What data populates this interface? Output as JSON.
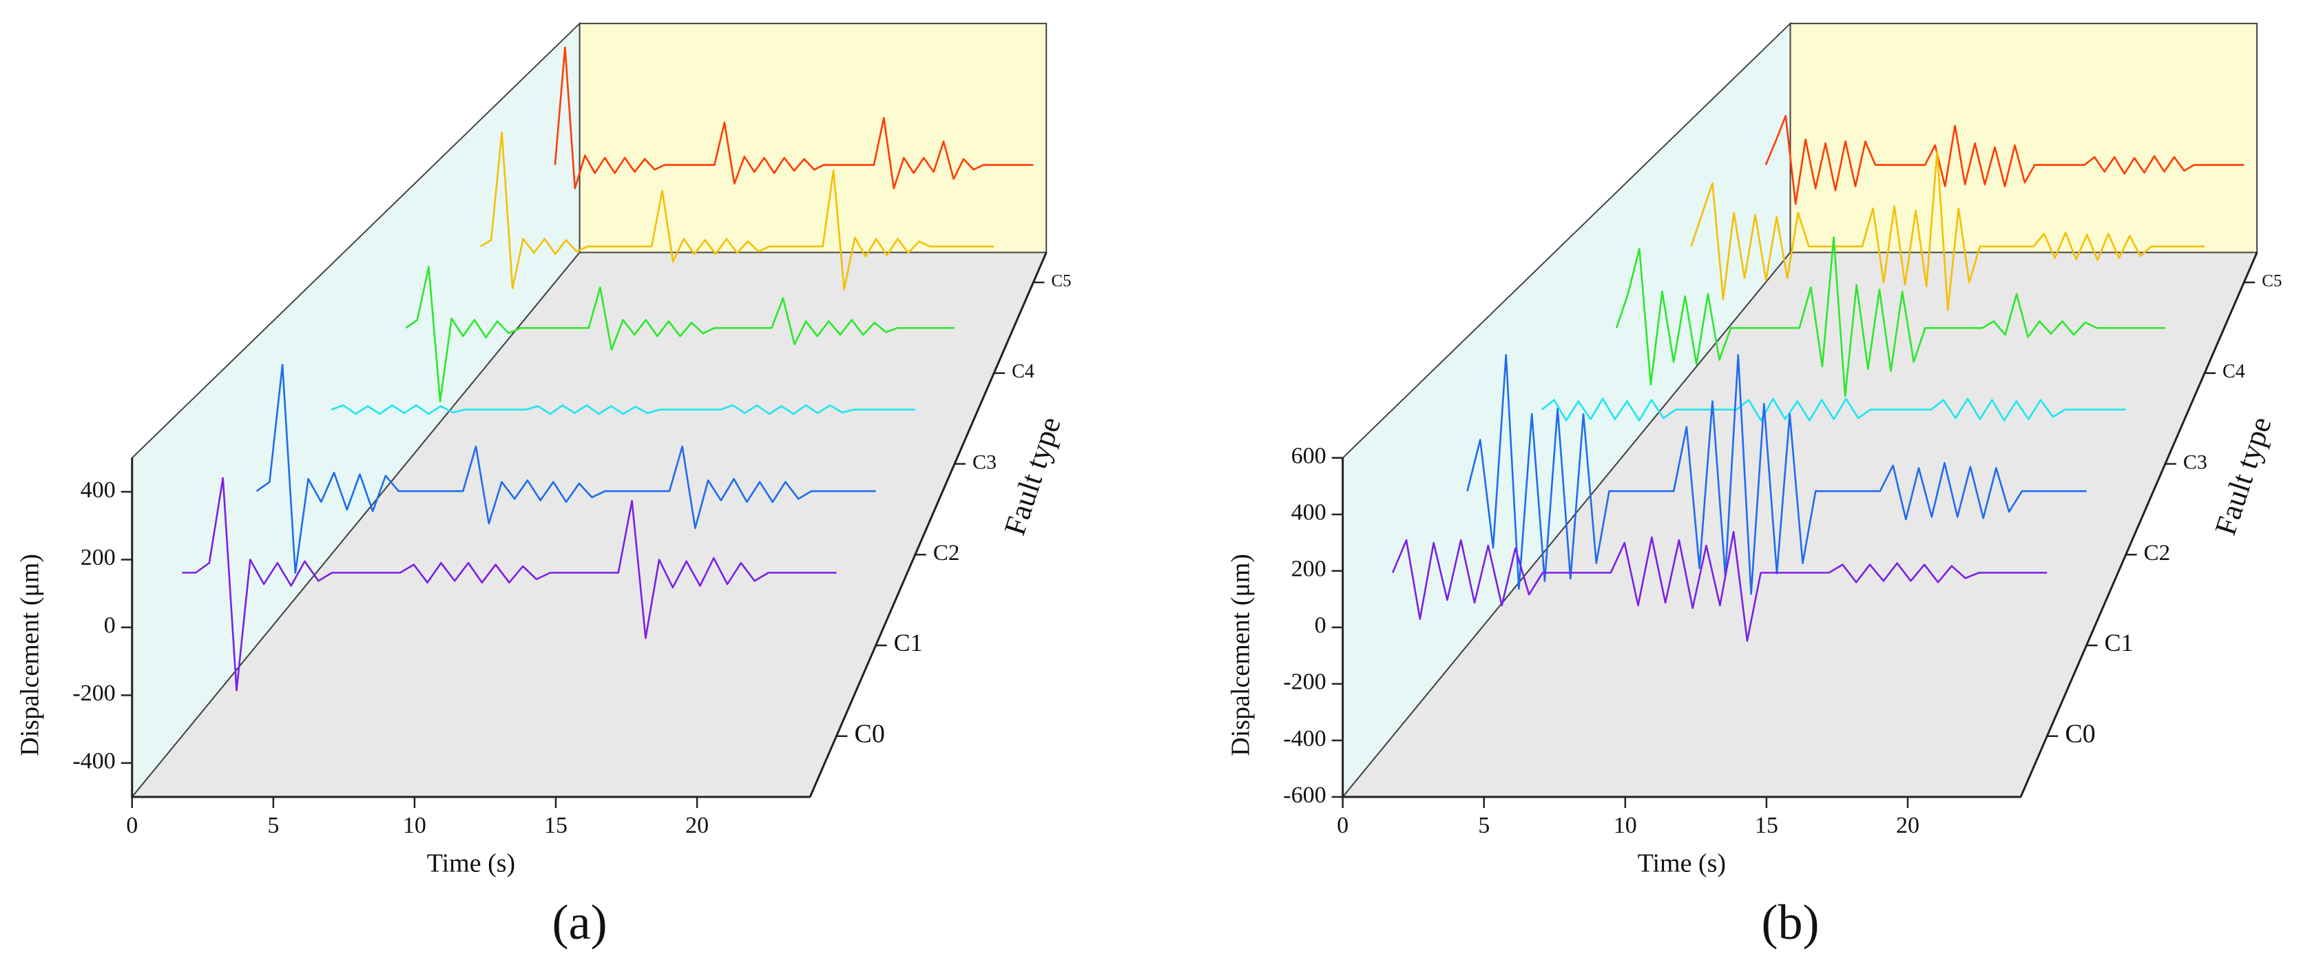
{
  "chart_data": [
    {
      "type": "waterfall",
      "caption": "(a)",
      "x_label": "Time (s)",
      "y_label": "Dispalcement (μm)",
      "z_label": "Fault type",
      "xlim": [
        0,
        24
      ],
      "xticks": [
        0,
        5,
        10,
        15,
        20
      ],
      "ylim": [
        -500,
        500
      ],
      "yticks": [
        -400,
        -200,
        0,
        200,
        400
      ],
      "z_categories": [
        "C0",
        "C1",
        "C2",
        "C3",
        "C4",
        "C5"
      ],
      "x": [
        0,
        0.5,
        1,
        1.5,
        2,
        2.5,
        3,
        3.5,
        4,
        4.5,
        5,
        5.5,
        6,
        6.5,
        7,
        7.5,
        8,
        8.5,
        9,
        9.5,
        10,
        10.5,
        11,
        11.5,
        12,
        12.5,
        13,
        13.5,
        14,
        14.5,
        15,
        15.5,
        16,
        16.5,
        17,
        17.5,
        18,
        18.5,
        19,
        19.5,
        20,
        20.5,
        21,
        21.5,
        22,
        22.5,
        23,
        23.5,
        24
      ],
      "series": [
        {
          "color": "#7b1fe8",
          "values": [
            0,
            0,
            30,
            290,
            -360,
            40,
            -35,
            30,
            -40,
            35,
            -25,
            0,
            0,
            0,
            0,
            0,
            0,
            25,
            -30,
            30,
            -25,
            30,
            -30,
            25,
            -30,
            20,
            -20,
            0,
            0,
            0,
            0,
            0,
            0,
            220,
            -200,
            40,
            -45,
            35,
            -40,
            45,
            -35,
            30,
            -25,
            0,
            0,
            0,
            0,
            0,
            0
          ]
        },
        {
          "color": "#1f6bf0",
          "values": [
            0,
            30,
            410,
            -265,
            40,
            -35,
            60,
            -60,
            55,
            -65,
            50,
            0,
            0,
            0,
            0,
            0,
            0,
            145,
            -105,
            30,
            -25,
            35,
            -30,
            30,
            -35,
            25,
            -20,
            0,
            0,
            0,
            0,
            0,
            0,
            145,
            -120,
            35,
            -30,
            40,
            -35,
            30,
            -35,
            30,
            -25,
            0,
            0,
            0,
            0,
            0,
            0
          ]
        },
        {
          "color": "#1ee6f0",
          "values": [
            0,
            15,
            -15,
            12,
            -15,
            15,
            -12,
            15,
            -15,
            12,
            -10,
            0,
            0,
            0,
            0,
            0,
            0,
            12,
            -15,
            15,
            -12,
            15,
            -15,
            12,
            -15,
            10,
            -12,
            0,
            0,
            0,
            0,
            0,
            0,
            15,
            -12,
            15,
            -15,
            12,
            -15,
            15,
            -12,
            15,
            -10,
            0,
            0,
            0,
            0,
            0,
            0
          ]
        },
        {
          "color": "#2be82b",
          "values": [
            0,
            30,
            225,
            -270,
            35,
            -30,
            30,
            -35,
            25,
            -20,
            0,
            0,
            0,
            0,
            0,
            0,
            0,
            150,
            -80,
            30,
            -25,
            30,
            -30,
            25,
            -30,
            20,
            -20,
            0,
            0,
            0,
            0,
            0,
            0,
            110,
            -60,
            25,
            -30,
            25,
            -25,
            30,
            -25,
            20,
            -15,
            0,
            0,
            0,
            0,
            0,
            0
          ]
        },
        {
          "color": "#f5c000",
          "values": [
            0,
            25,
            450,
            -165,
            30,
            -25,
            30,
            -30,
            25,
            -20,
            0,
            0,
            0,
            0,
            0,
            0,
            0,
            220,
            -60,
            30,
            -30,
            25,
            -30,
            30,
            -25,
            20,
            -20,
            0,
            0,
            0,
            0,
            0,
            0,
            300,
            -170,
            35,
            -40,
            30,
            -35,
            30,
            -25,
            20,
            0,
            0,
            0,
            0,
            0,
            0,
            0
          ]
        },
        {
          "color": "#ff3c00",
          "values": [
            0,
            500,
            -100,
            40,
            -35,
            30,
            -35,
            30,
            -30,
            25,
            -20,
            0,
            0,
            0,
            0,
            0,
            0,
            180,
            -80,
            35,
            -30,
            30,
            -35,
            30,
            -25,
            25,
            -20,
            0,
            0,
            0,
            0,
            0,
            0,
            200,
            -100,
            30,
            -35,
            30,
            -30,
            100,
            -60,
            25,
            -20,
            0,
            0,
            0,
            0,
            0,
            0
          ]
        }
      ]
    },
    {
      "type": "waterfall",
      "caption": "(b)",
      "x_label": "Time (s)",
      "y_label": "Dispalcement (μm)",
      "z_label": "Fault type",
      "xlim": [
        0,
        24
      ],
      "xticks": [
        0,
        5,
        10,
        15,
        20
      ],
      "ylim": [
        -600,
        600
      ],
      "yticks": [
        -600,
        -400,
        -200,
        0,
        200,
        400,
        600
      ],
      "z_categories": [
        "C0",
        "C1",
        "C2",
        "C3",
        "C4",
        "C5"
      ],
      "x": [
        0,
        0.5,
        1,
        1.5,
        2,
        2.5,
        3,
        3.5,
        4,
        4.5,
        5,
        5.5,
        6,
        6.5,
        7,
        7.5,
        8,
        8.5,
        9,
        9.5,
        10,
        10.5,
        11,
        11.5,
        12,
        12.5,
        13,
        13.5,
        14,
        14.5,
        15,
        15.5,
        16,
        16.5,
        17,
        17.5,
        18,
        18.5,
        19,
        19.5,
        20,
        20.5,
        21,
        21.5,
        22,
        22.5,
        23,
        23.5,
        24
      ],
      "series": [
        {
          "color": "#7b1fe8",
          "values": [
            0,
            120,
            -170,
            110,
            -100,
            120,
            -110,
            100,
            -120,
            90,
            -80,
            0,
            0,
            0,
            0,
            0,
            0,
            110,
            -120,
            130,
            -110,
            120,
            -130,
            100,
            -120,
            150,
            -250,
            0,
            0,
            0,
            0,
            0,
            0,
            30,
            -35,
            30,
            -30,
            35,
            -30,
            30,
            -35,
            25,
            -20,
            0,
            0,
            0,
            0,
            0,
            0
          ]
        },
        {
          "color": "#1f6bf0",
          "values": [
            0,
            200,
            -220,
            530,
            -380,
            300,
            -350,
            320,
            -340,
            300,
            -280,
            0,
            0,
            0,
            0,
            0,
            0,
            250,
            -300,
            350,
            -330,
            530,
            -400,
            340,
            -320,
            300,
            -280,
            0,
            0,
            0,
            0,
            0,
            0,
            100,
            -110,
            90,
            -100,
            110,
            -100,
            95,
            -105,
            90,
            -80,
            0,
            0,
            0,
            0,
            0,
            0
          ]
        },
        {
          "color": "#1ee6f0",
          "values": [
            0,
            40,
            -45,
            35,
            -40,
            45,
            -40,
            35,
            -45,
            40,
            -35,
            0,
            0,
            0,
            0,
            0,
            0,
            40,
            -45,
            45,
            -40,
            35,
            -45,
            40,
            -40,
            45,
            -35,
            0,
            0,
            0,
            0,
            0,
            0,
            40,
            -35,
            45,
            -40,
            40,
            -45,
            35,
            -40,
            40,
            -30,
            0,
            0,
            0,
            0,
            0,
            0
          ]
        },
        {
          "color": "#2be82b",
          "values": [
            0,
            150,
            350,
            -250,
            160,
            -150,
            140,
            -160,
            150,
            -140,
            0,
            0,
            0,
            0,
            0,
            0,
            0,
            180,
            -170,
            400,
            -300,
            190,
            -180,
            170,
            -190,
            160,
            -150,
            0,
            0,
            0,
            0,
            0,
            0,
            30,
            -30,
            150,
            -40,
            30,
            -25,
            30,
            -30,
            25,
            0,
            0,
            0,
            0,
            0,
            0,
            0
          ]
        },
        {
          "color": "#f5c000",
          "values": [
            0,
            150,
            300,
            -250,
            160,
            -150,
            150,
            -160,
            140,
            -150,
            160,
            0,
            0,
            0,
            0,
            0,
            0,
            180,
            -170,
            190,
            -180,
            170,
            -190,
            450,
            -300,
            180,
            -170,
            0,
            0,
            0,
            0,
            0,
            0,
            60,
            -55,
            65,
            -60,
            55,
            -65,
            60,
            -55,
            50,
            -45,
            0,
            0,
            0,
            0,
            0,
            0
          ]
        },
        {
          "color": "#ff3c00",
          "values": [
            0,
            120,
            250,
            -200,
            130,
            -120,
            110,
            -130,
            120,
            -110,
            120,
            0,
            0,
            0,
            0,
            0,
            0,
            100,
            -110,
            200,
            -100,
            110,
            -100,
            90,
            -110,
            100,
            -90,
            0,
            0,
            0,
            0,
            0,
            0,
            40,
            -35,
            40,
            -45,
            35,
            -40,
            45,
            -35,
            40,
            -30,
            0,
            0,
            0,
            0,
            0,
            0
          ]
        }
      ]
    }
  ]
}
